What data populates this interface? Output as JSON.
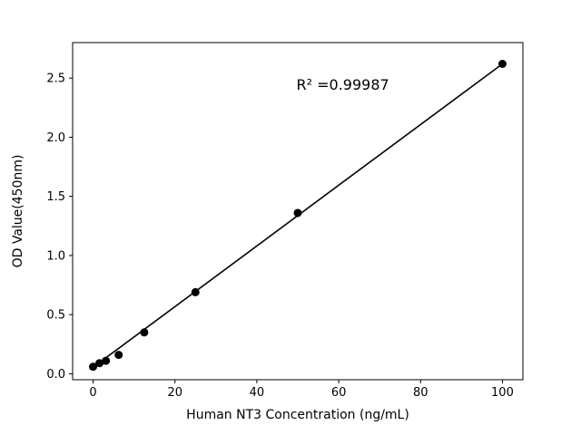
{
  "chart_data": {
    "type": "scatter",
    "title": "",
    "xlabel": "Human NT3 Concentration (ng/mL)",
    "ylabel": "OD Value(450nm)",
    "x": [
      0,
      1.56,
      3.125,
      6.25,
      12.5,
      25,
      50,
      100
    ],
    "y": [
      0.06,
      0.09,
      0.11,
      0.16,
      0.35,
      0.69,
      1.36,
      2.62
    ],
    "fit_line": {
      "x1": 0,
      "y1": 0.055,
      "x2": 100,
      "y2": 2.62
    },
    "annotation": {
      "text": "R² =0.99987",
      "x": 61,
      "y": 2.4
    },
    "xlim": [
      -5,
      105
    ],
    "ylim": [
      -0.05,
      2.8
    ],
    "xticks": [
      0,
      20,
      40,
      60,
      80,
      100
    ],
    "yticks": [
      0.0,
      0.5,
      1.0,
      1.5,
      2.0,
      2.5
    ],
    "grid": false,
    "legend": null,
    "marker_color": "#000000",
    "line_color": "#000000",
    "background": "#ffffff"
  }
}
